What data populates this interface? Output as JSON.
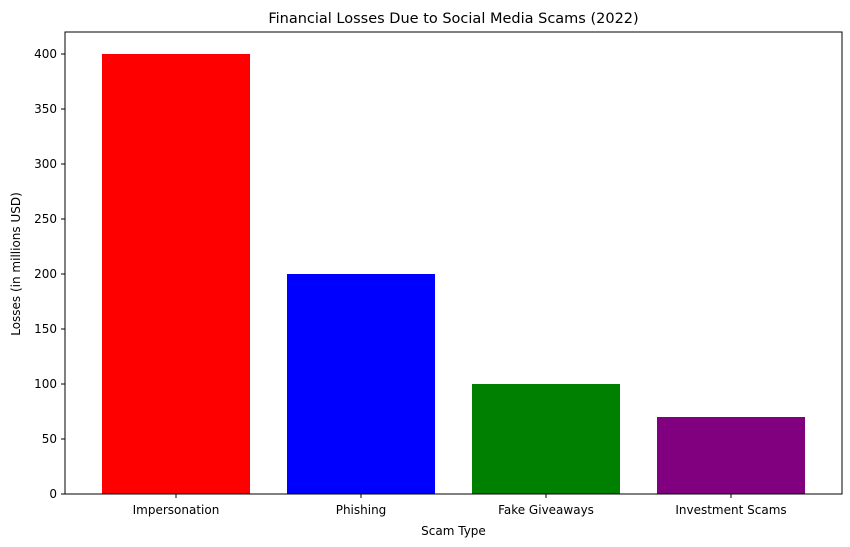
{
  "chart_data": {
    "type": "bar",
    "title": "Financial Losses Due to Social Media Scams (2022)",
    "xlabel": "Scam Type",
    "ylabel": "Losses (in millions USD)",
    "categories": [
      "Impersonation",
      "Phishing",
      "Fake Giveaways",
      "Investment Scams"
    ],
    "values": [
      400,
      200,
      100,
      70
    ],
    "colors": [
      "#ff0000",
      "#0000ff",
      "#008000",
      "#800080"
    ],
    "ylim": [
      0,
      420
    ],
    "yticks": [
      0,
      50,
      100,
      150,
      200,
      250,
      300,
      350,
      400
    ],
    "grid": false,
    "legend": "none"
  }
}
